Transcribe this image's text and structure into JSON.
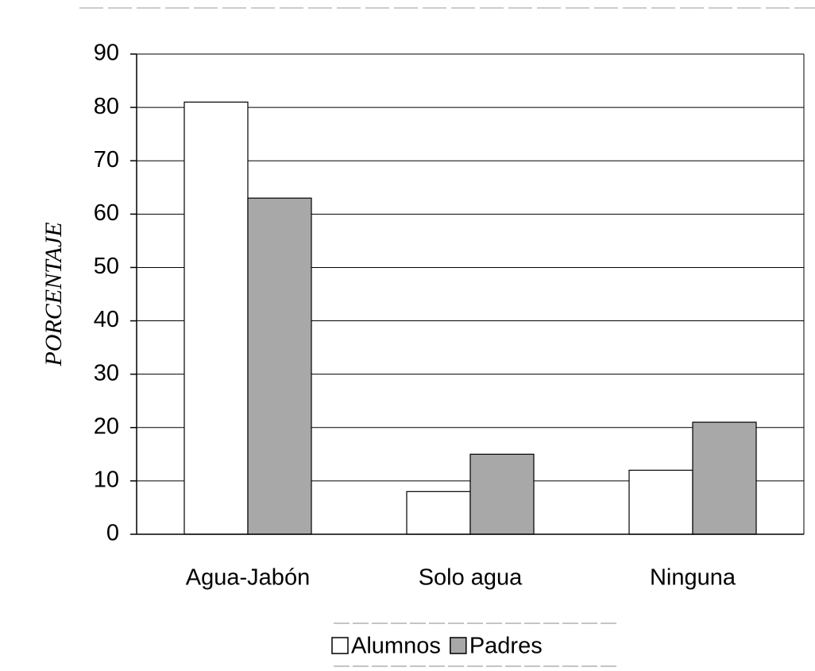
{
  "chart_data": {
    "type": "bar",
    "y_label": "PORCENTAJE",
    "categories": [
      "Agua-Jabón",
      "Solo agua",
      "Ninguna"
    ],
    "series": [
      {
        "name": "Alumnos",
        "color": "#ffffff",
        "values": [
          81,
          8,
          12
        ]
      },
      {
        "name": "Padres",
        "color": "#a8a8a8",
        "values": [
          63,
          15,
          21
        ]
      }
    ],
    "ylim": [
      0,
      90
    ],
    "yticks": [
      0,
      10,
      20,
      30,
      40,
      50,
      60,
      70,
      80,
      90
    ],
    "grid": true,
    "legend": "bottom"
  }
}
